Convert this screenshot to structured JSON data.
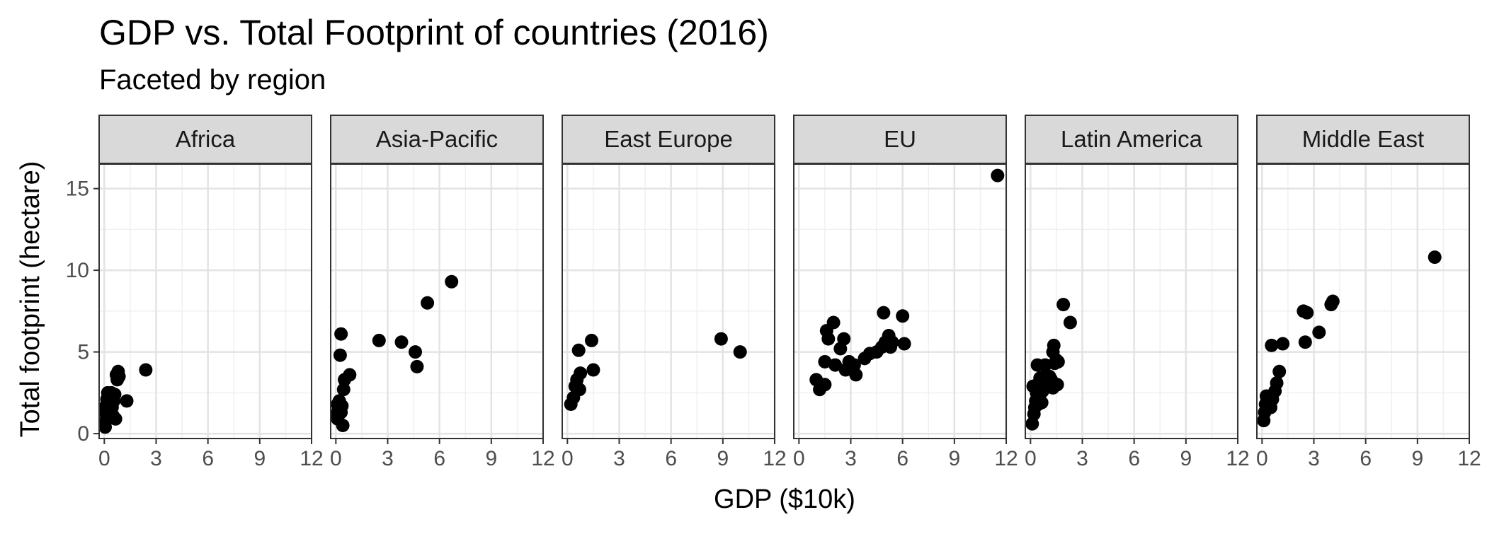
{
  "chart_data": {
    "type": "scatter",
    "title": "GDP vs. Total Footprint of countries (2016)",
    "subtitle": "Faceted by region",
    "xlabel": "GDP ($10k)",
    "ylabel": "Total footprint (hectare)",
    "xlim": [
      -0.3,
      12
    ],
    "ylim": [
      -0.3,
      16.5
    ],
    "x_ticks": [
      0,
      3,
      6,
      9,
      12
    ],
    "y_ticks": [
      0,
      5,
      10,
      15
    ],
    "grid": true,
    "point_color": "#000000",
    "strip_fill": "#d9d9d9",
    "facets": [
      {
        "name": "Africa",
        "points": [
          [
            0.05,
            0.4
          ],
          [
            0.1,
            0.8
          ],
          [
            0.15,
            1.0
          ],
          [
            0.05,
            1.3
          ],
          [
            0.2,
            1.5
          ],
          [
            0.1,
            1.7
          ],
          [
            0.25,
            1.2
          ],
          [
            0.3,
            1.9
          ],
          [
            0.15,
            2.1
          ],
          [
            0.35,
            2.3
          ],
          [
            0.2,
            2.5
          ],
          [
            0.45,
            1.6
          ],
          [
            0.55,
            2.0
          ],
          [
            0.4,
            2.5
          ],
          [
            0.6,
            2.4
          ],
          [
            0.5,
            1.1
          ],
          [
            0.65,
            0.9
          ],
          [
            0.7,
            3.6
          ],
          [
            0.8,
            3.8
          ],
          [
            0.75,
            3.3
          ],
          [
            0.85,
            3.5
          ],
          [
            1.3,
            2.0
          ],
          [
            2.4,
            3.9
          ]
        ]
      },
      {
        "name": "Asia-Pacific",
        "points": [
          [
            0.1,
            0.9
          ],
          [
            0.05,
            1.2
          ],
          [
            0.15,
            1.5
          ],
          [
            0.1,
            1.8
          ],
          [
            0.2,
            2.0
          ],
          [
            0.3,
            1.3
          ],
          [
            0.35,
            1.7
          ],
          [
            0.4,
            0.5
          ],
          [
            0.45,
            2.7
          ],
          [
            0.5,
            3.3
          ],
          [
            0.25,
            4.8
          ],
          [
            0.3,
            6.1
          ],
          [
            0.8,
            3.6
          ],
          [
            2.5,
            5.7
          ],
          [
            3.8,
            5.6
          ],
          [
            4.6,
            5.0
          ],
          [
            4.7,
            4.1
          ],
          [
            5.3,
            8.0
          ],
          [
            6.7,
            9.3
          ]
        ]
      },
      {
        "name": "East Europe",
        "points": [
          [
            0.2,
            1.8
          ],
          [
            0.35,
            2.2
          ],
          [
            0.45,
            2.9
          ],
          [
            0.55,
            3.3
          ],
          [
            0.7,
            2.7
          ],
          [
            0.75,
            3.7
          ],
          [
            0.65,
            5.1
          ],
          [
            1.4,
            5.7
          ],
          [
            1.5,
            3.9
          ],
          [
            8.9,
            5.8
          ],
          [
            10.0,
            5.0
          ]
        ]
      },
      {
        "name": "EU",
        "points": [
          [
            1.0,
            3.3
          ],
          [
            1.2,
            2.7
          ],
          [
            1.5,
            3.0
          ],
          [
            1.6,
            6.3
          ],
          [
            1.7,
            5.8
          ],
          [
            1.5,
            4.4
          ],
          [
            2.0,
            6.8
          ],
          [
            2.1,
            4.2
          ],
          [
            2.4,
            5.2
          ],
          [
            2.6,
            5.8
          ],
          [
            2.7,
            3.9
          ],
          [
            2.9,
            4.4
          ],
          [
            3.2,
            4.2
          ],
          [
            3.3,
            3.6
          ],
          [
            3.8,
            4.6
          ],
          [
            4.1,
            4.9
          ],
          [
            4.5,
            5.0
          ],
          [
            4.8,
            5.3
          ],
          [
            4.9,
            7.4
          ],
          [
            5.0,
            5.6
          ],
          [
            5.2,
            6.0
          ],
          [
            5.3,
            5.3
          ],
          [
            5.4,
            5.6
          ],
          [
            6.0,
            7.2
          ],
          [
            6.1,
            5.5
          ],
          [
            11.5,
            15.8
          ]
        ]
      },
      {
        "name": "Latin America",
        "points": [
          [
            0.1,
            0.6
          ],
          [
            0.2,
            1.2
          ],
          [
            0.25,
            1.6
          ],
          [
            0.3,
            2.0
          ],
          [
            0.35,
            2.5
          ],
          [
            0.4,
            3.0
          ],
          [
            0.45,
            1.8
          ],
          [
            0.5,
            2.2
          ],
          [
            0.55,
            3.4
          ],
          [
            0.6,
            2.9
          ],
          [
            0.4,
            4.2
          ],
          [
            0.65,
            1.9
          ],
          [
            0.7,
            2.6
          ],
          [
            0.8,
            3.1
          ],
          [
            0.85,
            4.2
          ],
          [
            0.9,
            3.6
          ],
          [
            1.0,
            3.0
          ],
          [
            1.1,
            3.5
          ],
          [
            1.2,
            3.3
          ],
          [
            1.3,
            2.8
          ],
          [
            1.4,
            4.3
          ],
          [
            1.5,
            4.5
          ],
          [
            1.3,
            5.0
          ],
          [
            1.35,
            5.4
          ],
          [
            1.6,
            4.4
          ],
          [
            1.55,
            3.0
          ],
          [
            1.9,
            7.9
          ],
          [
            2.3,
            6.8
          ],
          [
            0.15,
            2.9
          ]
        ]
      },
      {
        "name": "Middle East",
        "points": [
          [
            0.1,
            0.8
          ],
          [
            0.15,
            1.3
          ],
          [
            0.2,
            1.8
          ],
          [
            0.25,
            2.3
          ],
          [
            0.5,
            1.6
          ],
          [
            0.6,
            2.1
          ],
          [
            0.75,
            2.6
          ],
          [
            0.85,
            3.1
          ],
          [
            1.0,
            3.8
          ],
          [
            0.55,
            5.4
          ],
          [
            1.2,
            5.5
          ],
          [
            2.4,
            7.5
          ],
          [
            2.6,
            7.4
          ],
          [
            2.5,
            5.6
          ],
          [
            3.3,
            6.2
          ],
          [
            4.0,
            7.9
          ],
          [
            4.1,
            8.1
          ],
          [
            10.0,
            10.8
          ]
        ]
      }
    ]
  }
}
